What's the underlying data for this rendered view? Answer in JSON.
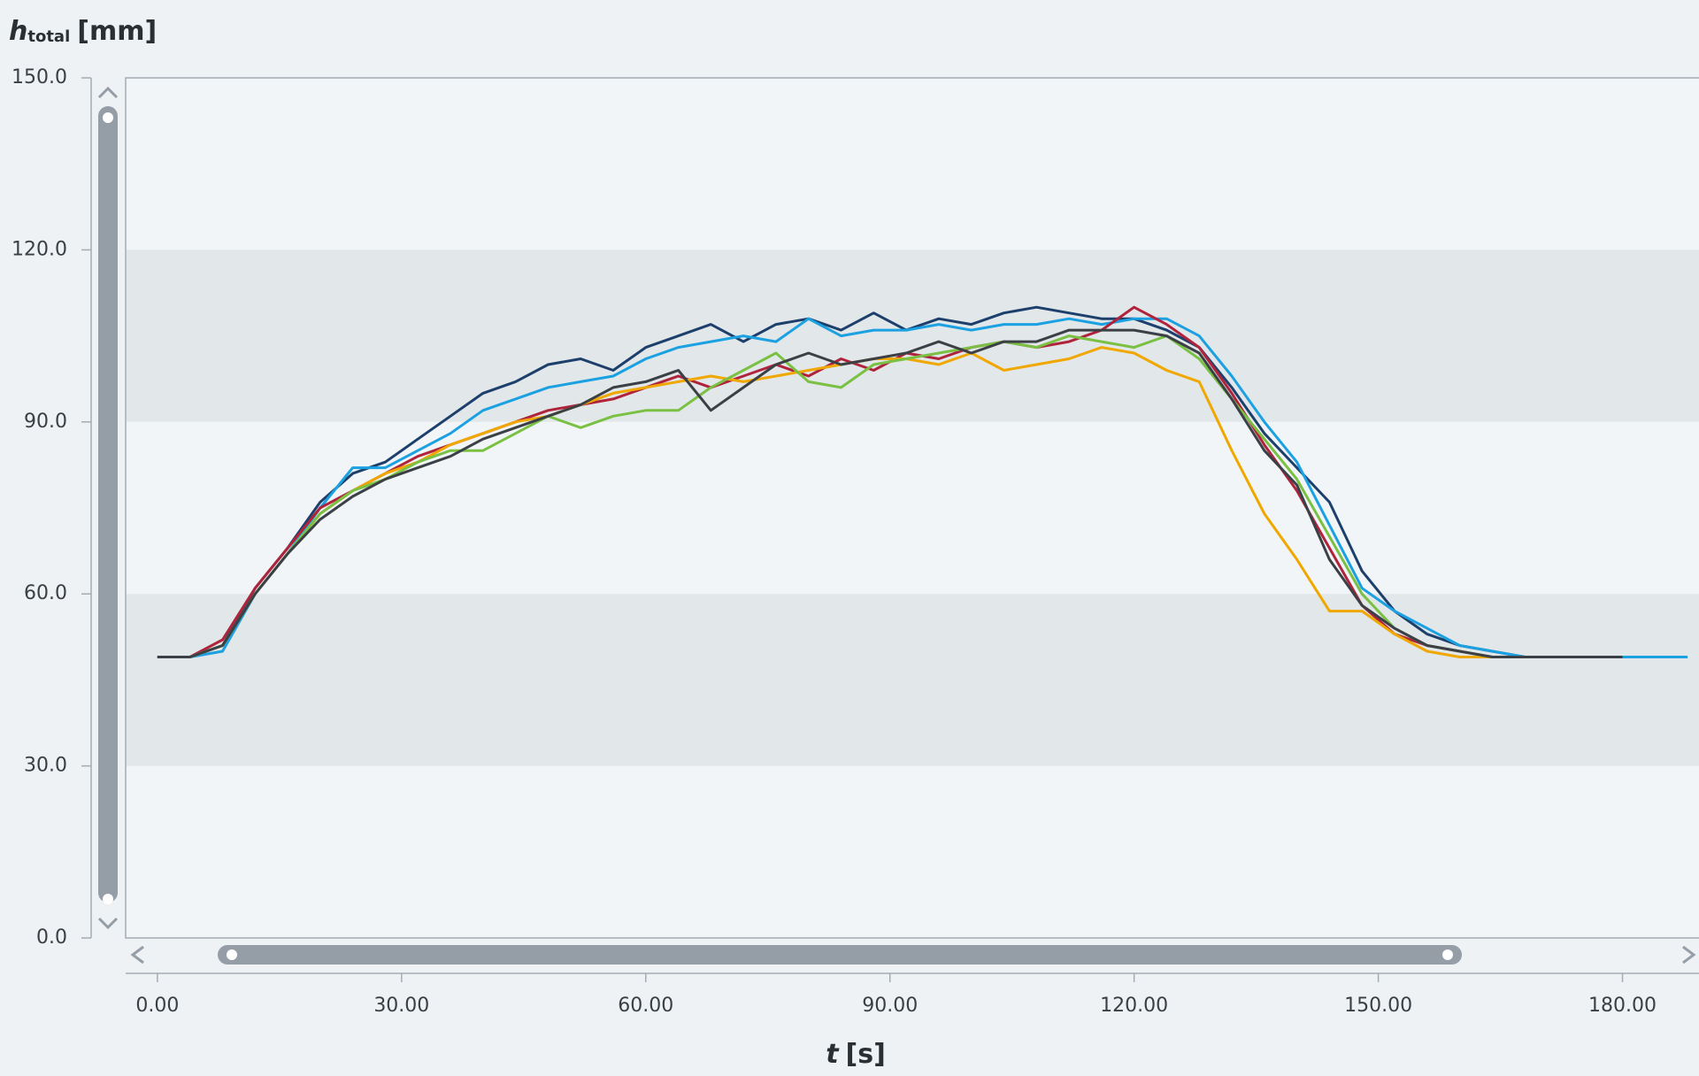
{
  "chart_data": {
    "type": "line",
    "y_label": {
      "symbol": "h",
      "subscript": "total",
      "unit": "[mm]"
    },
    "x_label": {
      "symbol": "t",
      "unit": "[s]"
    },
    "x": [
      0,
      4,
      8,
      12,
      16,
      20,
      24,
      28,
      32,
      36,
      40,
      44,
      48,
      52,
      56,
      60,
      64,
      68,
      72,
      76,
      80,
      84,
      88,
      92,
      96,
      100,
      104,
      108,
      112,
      116,
      120,
      124,
      128,
      132,
      136,
      140,
      144,
      148,
      152,
      156,
      160,
      164,
      168,
      172,
      176,
      180,
      184,
      188
    ],
    "series": [
      {
        "color": "#1d3f6b",
        "values": [
          49,
          49,
          51,
          61,
          68,
          76,
          81,
          83,
          87,
          91,
          95,
          97,
          100,
          101,
          99,
          103,
          105,
          107,
          104,
          107,
          108,
          106,
          109,
          106,
          108,
          107,
          109,
          110,
          109,
          108,
          108,
          106,
          103,
          96,
          88,
          82,
          76,
          64,
          57,
          53,
          51,
          50,
          49,
          49,
          49,
          49,
          null,
          null
        ]
      },
      {
        "color": "#1ba1e2",
        "values": [
          49,
          49,
          50,
          60,
          67,
          75,
          82,
          82,
          85,
          88,
          92,
          94,
          96,
          97,
          98,
          101,
          103,
          104,
          105,
          104,
          108,
          105,
          106,
          106,
          107,
          106,
          107,
          107,
          108,
          107,
          108,
          108,
          105,
          98,
          90,
          83,
          72,
          61,
          57,
          54,
          51,
          50,
          49,
          49,
          49,
          49,
          49,
          49
        ]
      },
      {
        "color": "#b0233c",
        "values": [
          49,
          49,
          52,
          61,
          68,
          75,
          78,
          81,
          84,
          86,
          88,
          90,
          92,
          93,
          94,
          96,
          98,
          96,
          98,
          100,
          98,
          101,
          99,
          102,
          101,
          103,
          104,
          103,
          104,
          106,
          110,
          107,
          103,
          95,
          86,
          78,
          68,
          58,
          53,
          51,
          50,
          49,
          49,
          49,
          49,
          49,
          null,
          null
        ]
      },
      {
        "color": "#f0a800",
        "values": [
          49,
          49,
          51,
          60,
          67,
          74,
          78,
          81,
          83,
          86,
          88,
          90,
          91,
          93,
          95,
          96,
          97,
          98,
          97,
          98,
          99,
          100,
          101,
          101,
          100,
          102,
          99,
          100,
          101,
          103,
          102,
          99,
          97,
          85,
          74,
          66,
          57,
          57,
          53,
          50,
          49,
          49,
          49,
          49,
          49,
          49,
          null,
          null
        ]
      },
      {
        "color": "#7ac143",
        "values": [
          49,
          49,
          51,
          60,
          67,
          74,
          78,
          80,
          83,
          85,
          85,
          88,
          91,
          89,
          91,
          92,
          92,
          96,
          99,
          102,
          97,
          96,
          100,
          101,
          102,
          103,
          104,
          103,
          105,
          104,
          103,
          105,
          101,
          94,
          87,
          80,
          70,
          60,
          54,
          51,
          50,
          49,
          49,
          49,
          49,
          49,
          null,
          null
        ]
      },
      {
        "color": "#3b4046",
        "values": [
          49,
          49,
          51,
          60,
          67,
          73,
          77,
          80,
          82,
          84,
          87,
          89,
          91,
          93,
          96,
          97,
          99,
          92,
          96,
          100,
          102,
          100,
          101,
          102,
          104,
          102,
          104,
          104,
          106,
          106,
          106,
          105,
          102,
          94,
          85,
          79,
          66,
          58,
          54,
          51,
          50,
          49,
          49,
          49,
          49,
          49,
          null,
          null
        ]
      }
    ],
    "xlim": [
      -3.9,
      189.4
    ],
    "ylim": [
      0,
      150
    ],
    "xticks": [
      {
        "value": 0,
        "label": "0.00"
      },
      {
        "value": 30,
        "label": "30.00"
      },
      {
        "value": 60,
        "label": "60.00"
      },
      {
        "value": 90,
        "label": "90.00"
      },
      {
        "value": 120,
        "label": "120.00"
      },
      {
        "value": 150,
        "label": "150.00"
      },
      {
        "value": 180,
        "label": "180.00"
      }
    ],
    "yticks": [
      {
        "value": 0,
        "label": "0.0"
      },
      {
        "value": 30,
        "label": "30.0"
      },
      {
        "value": 60,
        "label": "60.0"
      },
      {
        "value": 90,
        "label": "90.0"
      },
      {
        "value": 120,
        "label": "120.0"
      },
      {
        "value": 150,
        "label": "150.0"
      }
    ],
    "bands": [
      [
        30,
        60
      ],
      [
        90,
        120
      ]
    ],
    "band_color": "#e2e7ea"
  }
}
